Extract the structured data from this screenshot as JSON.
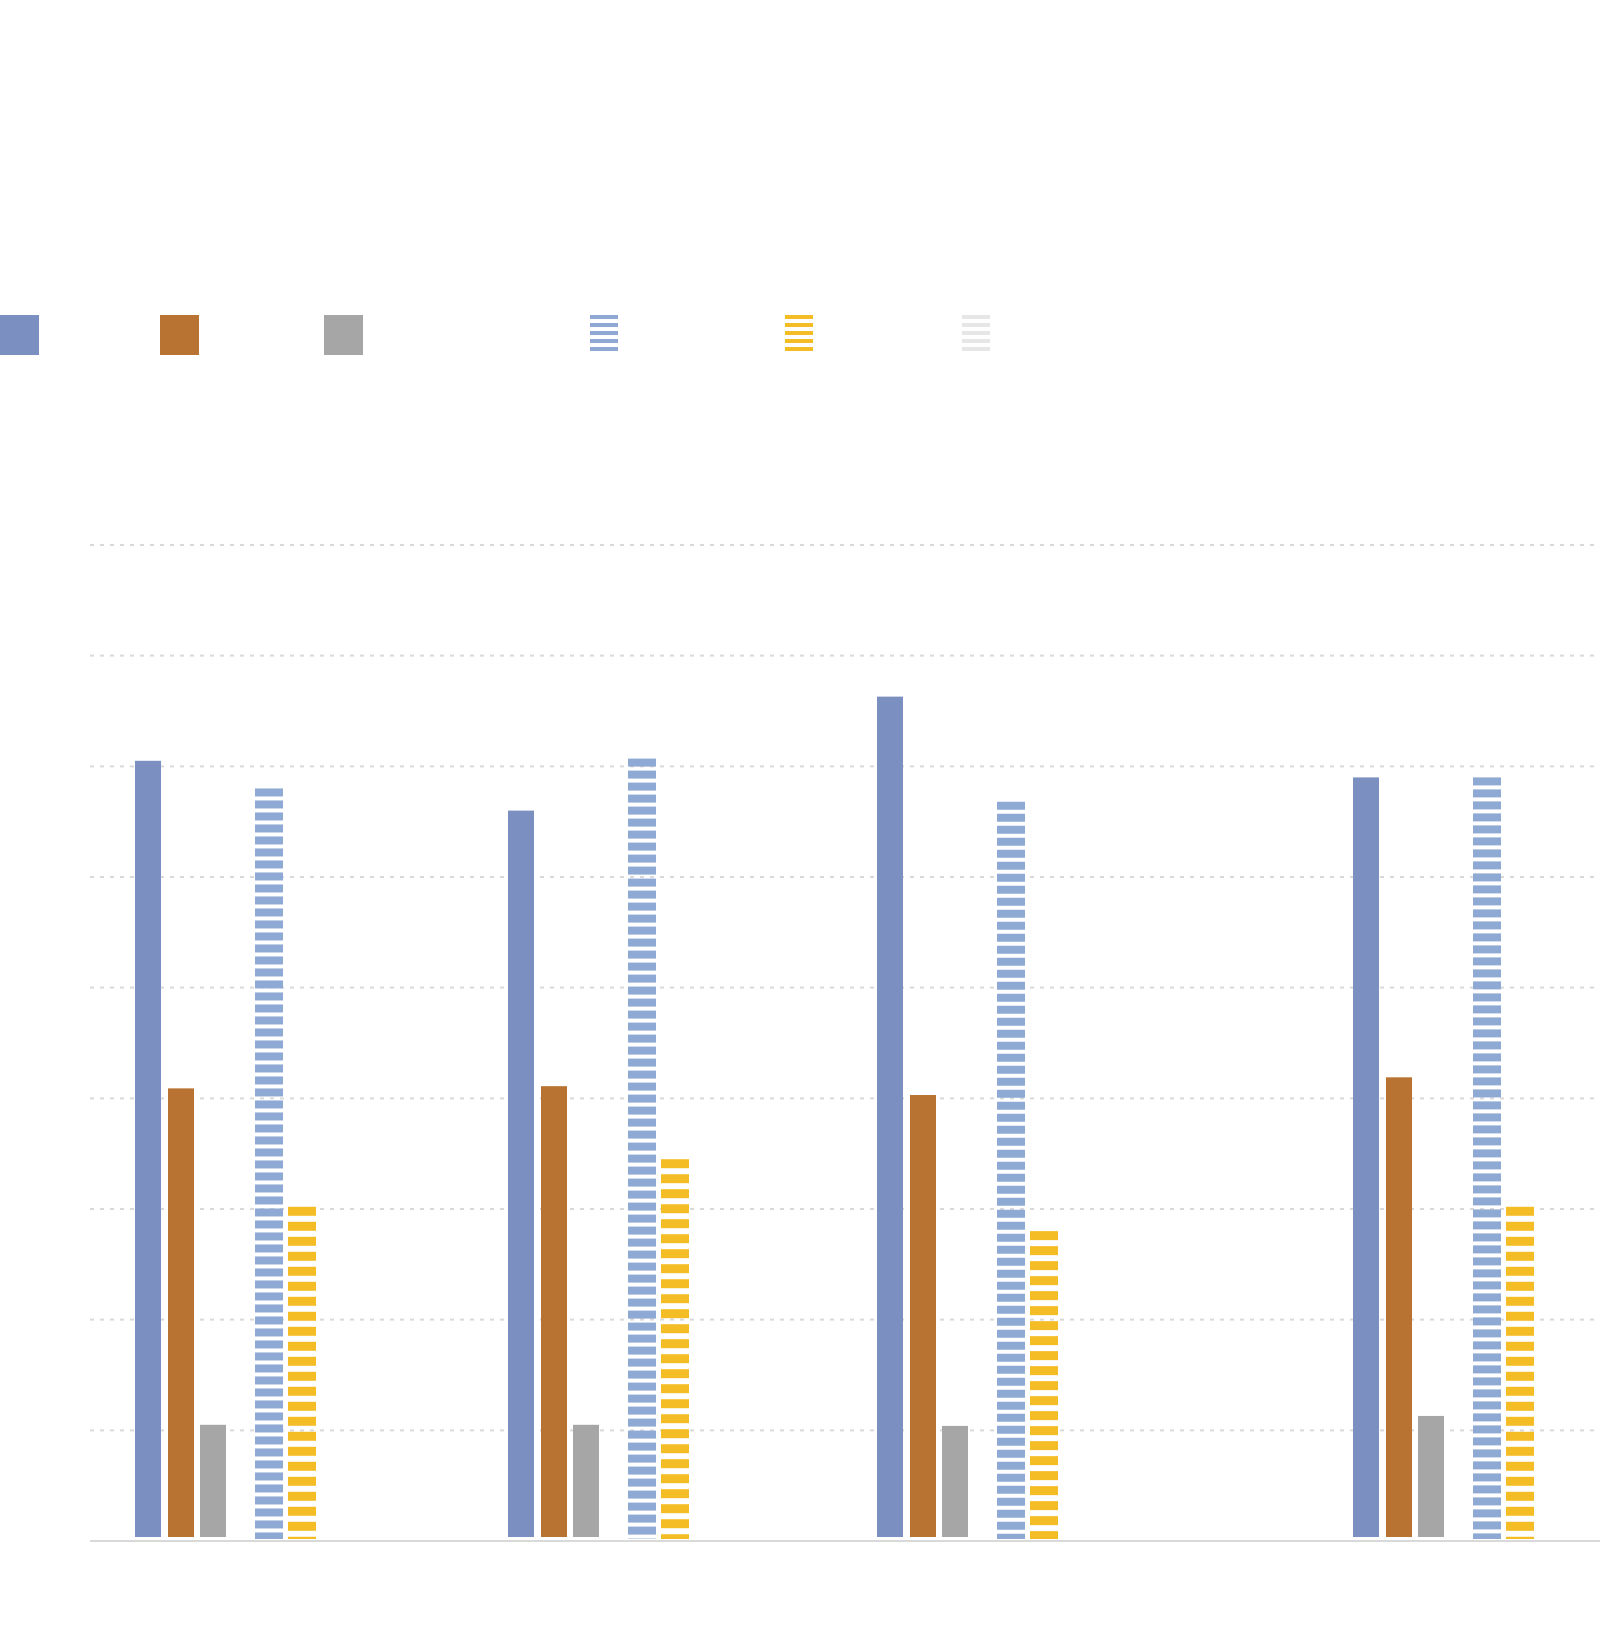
{
  "chart_data": {
    "type": "bar",
    "title": "",
    "xlabel": "",
    "ylabel": "",
    "ylim": [
      0,
      9
    ],
    "grid": true,
    "legend_placement": "top",
    "categories": [
      "",
      "",
      "",
      ""
    ],
    "series": [
      {
        "key": "s1",
        "values": [
          7.05,
          6.6,
          7.63,
          6.9
        ],
        "color": "#7b8fc0",
        "pattern": "solid"
      },
      {
        "key": "s2",
        "values": [
          4.09,
          4.11,
          4.03,
          4.19
        ],
        "color": "#b87333",
        "pattern": "solid"
      },
      {
        "key": "s3",
        "values": [
          1.05,
          1.05,
          1.04,
          1.13
        ],
        "color": "#a6a6a6",
        "pattern": "solid"
      },
      {
        "key": "s4",
        "values": [
          6.8,
          7.07,
          6.68,
          6.9
        ],
        "color": "#8ea9d3",
        "pattern": "horizontal-stripes"
      },
      {
        "key": "s5",
        "values": [
          3.02,
          3.45,
          2.8,
          3.02
        ],
        "color": "#f5bd25",
        "pattern": "horizontal-stripes"
      },
      {
        "key": "s6",
        "values": [
          null,
          null,
          null,
          null
        ],
        "color": "#e6e6e6",
        "pattern": "horizontal-stripes"
      }
    ]
  }
}
